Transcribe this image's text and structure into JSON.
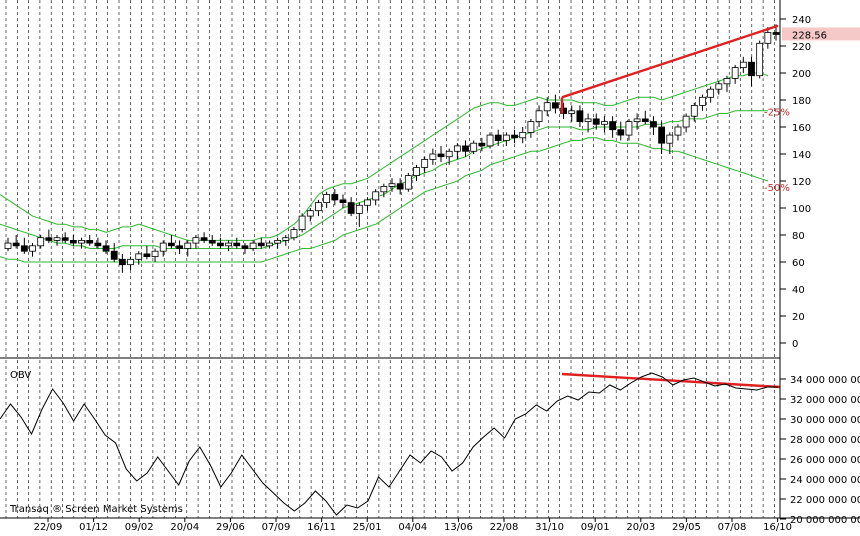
{
  "chart_data": [
    {
      "type": "candlestick",
      "ylim": [
        0,
        240
      ],
      "yticks": [
        0,
        20,
        40,
        60,
        80,
        100,
        120,
        140,
        160,
        180,
        200,
        220,
        240
      ],
      "last_price_label": "228.56",
      "envelope_labels": [
        "-25%",
        "-50%"
      ],
      "colors": {
        "envelope": "#2db82d",
        "trendline": "#e02020",
        "last_price_bg": "#f6c9c9",
        "envelope_label": "#c03030"
      },
      "candles": [
        [
          70,
          78,
          68,
          74
        ],
        [
          74,
          80,
          70,
          72
        ],
        [
          72,
          78,
          66,
          68
        ],
        [
          68,
          74,
          64,
          72
        ],
        [
          72,
          80,
          70,
          78
        ],
        [
          78,
          84,
          74,
          76
        ],
        [
          76,
          80,
          72,
          78
        ],
        [
          78,
          82,
          74,
          76
        ],
        [
          76,
          80,
          72,
          74
        ],
        [
          74,
          78,
          70,
          76
        ],
        [
          76,
          80,
          72,
          74
        ],
        [
          74,
          78,
          70,
          72
        ],
        [
          72,
          76,
          66,
          68
        ],
        [
          68,
          74,
          60,
          62
        ],
        [
          62,
          66,
          52,
          58
        ],
        [
          58,
          64,
          54,
          62
        ],
        [
          62,
          68,
          58,
          66
        ],
        [
          66,
          72,
          62,
          64
        ],
        [
          64,
          70,
          60,
          68
        ],
        [
          68,
          76,
          64,
          74
        ],
        [
          74,
          80,
          70,
          72
        ],
        [
          72,
          76,
          66,
          70
        ],
        [
          70,
          76,
          64,
          74
        ],
        [
          74,
          80,
          70,
          78
        ],
        [
          78,
          82,
          74,
          76
        ],
        [
          76,
          80,
          72,
          74
        ],
        [
          74,
          78,
          70,
          72
        ],
        [
          72,
          76,
          68,
          74
        ],
        [
          74,
          78,
          70,
          72
        ],
        [
          72,
          74,
          66,
          70
        ],
        [
          70,
          76,
          68,
          74
        ],
        [
          74,
          78,
          70,
          72
        ],
        [
          72,
          76,
          70,
          74
        ],
        [
          74,
          78,
          70,
          76
        ],
        [
          76,
          80,
          72,
          78
        ],
        [
          78,
          86,
          76,
          84
        ],
        [
          84,
          96,
          82,
          94
        ],
        [
          94,
          100,
          90,
          98
        ],
        [
          98,
          106,
          94,
          104
        ],
        [
          104,
          112,
          100,
          110
        ],
        [
          110,
          114,
          102,
          106
        ],
        [
          106,
          110,
          100,
          104
        ],
        [
          104,
          108,
          94,
          96
        ],
        [
          96,
          104,
          86,
          102
        ],
        [
          102,
          108,
          98,
          106
        ],
        [
          106,
          114,
          102,
          112
        ],
        [
          112,
          118,
          108,
          116
        ],
        [
          116,
          122,
          112,
          118
        ],
        [
          118,
          122,
          110,
          114
        ],
        [
          114,
          126,
          112,
          124
        ],
        [
          124,
          132,
          120,
          130
        ],
        [
          130,
          138,
          126,
          136
        ],
        [
          136,
          144,
          132,
          140
        ],
        [
          140,
          146,
          134,
          138
        ],
        [
          138,
          144,
          132,
          142
        ],
        [
          142,
          148,
          136,
          146
        ],
        [
          146,
          150,
          138,
          142
        ],
        [
          142,
          150,
          140,
          148
        ],
        [
          148,
          152,
          142,
          146
        ],
        [
          146,
          156,
          144,
          154
        ],
        [
          154,
          158,
          146,
          150
        ],
        [
          150,
          156,
          146,
          154
        ],
        [
          154,
          158,
          148,
          152
        ],
        [
          152,
          160,
          148,
          156
        ],
        [
          156,
          166,
          152,
          164
        ],
        [
          164,
          176,
          160,
          172
        ],
        [
          172,
          182,
          168,
          178
        ],
        [
          178,
          184,
          170,
          174
        ],
        [
          174,
          178,
          166,
          170
        ],
        [
          170,
          176,
          164,
          172
        ],
        [
          172,
          176,
          160,
          164
        ],
        [
          164,
          170,
          156,
          166
        ],
        [
          166,
          170,
          158,
          162
        ],
        [
          162,
          168,
          156,
          164
        ],
        [
          164,
          168,
          152,
          158
        ],
        [
          158,
          164,
          150,
          154
        ],
        [
          154,
          166,
          150,
          164
        ],
        [
          164,
          170,
          158,
          166
        ],
        [
          166,
          172,
          162,
          164
        ],
        [
          164,
          168,
          154,
          160
        ],
        [
          160,
          164,
          140,
          148
        ],
        [
          148,
          156,
          140,
          154
        ],
        [
          154,
          162,
          150,
          160
        ],
        [
          160,
          170,
          156,
          168
        ],
        [
          168,
          178,
          164,
          176
        ],
        [
          176,
          184,
          172,
          182
        ],
        [
          182,
          190,
          178,
          188
        ],
        [
          188,
          194,
          184,
          192
        ],
        [
          192,
          198,
          186,
          196
        ],
        [
          196,
          206,
          192,
          204
        ],
        [
          204,
          212,
          200,
          208
        ],
        [
          208,
          212,
          190,
          198
        ],
        [
          198,
          224,
          196,
          222
        ],
        [
          222,
          234,
          218,
          230
        ],
        [
          230,
          236,
          224,
          228.56
        ]
      ],
      "envelope_upper": [
        110,
        106,
        102,
        98,
        94,
        92,
        90,
        88,
        88,
        86,
        86,
        84,
        84,
        82,
        84,
        86,
        86,
        88,
        86,
        84,
        82,
        80,
        78,
        76,
        76,
        76,
        76,
        76,
        76,
        76,
        76,
        76,
        78,
        78,
        80,
        84,
        88,
        94,
        102,
        110,
        114,
        116,
        118,
        118,
        120,
        122,
        126,
        130,
        134,
        138,
        142,
        146,
        150,
        154,
        158,
        162,
        166,
        170,
        174,
        176,
        178,
        178,
        176,
        176,
        178,
        180,
        182,
        180,
        180,
        180,
        180,
        178,
        178,
        178,
        176,
        176,
        178,
        180,
        182,
        182,
        182,
        180,
        182,
        184,
        186,
        188,
        190,
        192,
        194,
        196,
        198,
        198,
        200,
        200,
        198
      ],
      "envelope_mid": [
        88,
        86,
        84,
        82,
        80,
        78,
        76,
        74,
        74,
        72,
        72,
        70,
        70,
        70,
        70,
        72,
        72,
        72,
        72,
        72,
        70,
        70,
        70,
        70,
        70,
        70,
        70,
        70,
        70,
        70,
        70,
        70,
        70,
        72,
        74,
        76,
        78,
        80,
        84,
        88,
        92,
        96,
        100,
        102,
        104,
        106,
        108,
        110,
        114,
        118,
        120,
        124,
        126,
        128,
        132,
        134,
        136,
        138,
        142,
        144,
        146,
        148,
        150,
        152,
        154,
        156,
        158,
        160,
        160,
        160,
        160,
        158,
        158,
        160,
        160,
        160,
        160,
        160,
        160,
        162,
        162,
        162,
        164,
        164,
        166,
        166,
        166,
        168,
        170,
        170,
        172,
        172,
        172,
        172,
        172
      ],
      "envelope_lower": [
        64,
        62,
        62,
        60,
        60,
        60,
        60,
        60,
        60,
        60,
        60,
        60,
        60,
        60,
        60,
        60,
        60,
        60,
        60,
        60,
        60,
        60,
        60,
        60,
        60,
        60,
        60,
        60,
        60,
        60,
        60,
        60,
        60,
        62,
        64,
        66,
        68,
        70,
        70,
        72,
        74,
        76,
        80,
        82,
        84,
        86,
        88,
        92,
        96,
        100,
        104,
        108,
        112,
        114,
        116,
        118,
        120,
        124,
        126,
        128,
        132,
        134,
        136,
        138,
        140,
        142,
        142,
        144,
        146,
        148,
        150,
        150,
        152,
        152,
        150,
        150,
        148,
        148,
        148,
        146,
        144,
        144,
        142,
        142,
        140,
        138,
        136,
        134,
        132,
        130,
        128,
        126,
        124,
        122,
        120
      ]
    },
    {
      "type": "line",
      "series": [
        {
          "name": "OBV",
          "values": [
            30,
            31.5,
            30.2,
            28.5,
            31,
            33,
            31.6,
            29.8,
            31.5,
            30,
            28.4,
            27.6,
            25,
            23.8,
            24.6,
            26.2,
            24.8,
            23.4,
            25.8,
            27.2,
            25.4,
            23.2,
            24.6,
            26.4,
            25,
            23.6,
            22.6,
            21.6,
            20.8,
            21.6,
            22.8,
            21.8,
            20.4,
            21.4,
            21.1,
            21.8,
            24.2,
            23.2,
            24.8,
            26.4,
            25.6,
            26.8,
            26.2,
            24.8,
            25.6,
            27.2,
            28.2,
            29.1,
            28.1,
            30,
            30.5,
            31.4,
            30.8,
            31.8,
            32.3,
            31.9,
            32.7,
            32.6,
            33.4,
            32.9,
            33.6,
            34.2,
            34.6,
            34.2,
            33.4,
            33.9,
            34.1,
            33.7,
            33.3,
            33.5,
            33.1,
            33,
            32.9,
            33.2,
            33.2
          ]
        }
      ],
      "title": "OBV",
      "ylim": [
        20.3,
        35.3
      ],
      "ytick_labels": [
        "20 000 000 000",
        "22 000 000 000",
        "24 000 000 000",
        "26 000 000 000",
        "28 000 000 000",
        "30 000 000 000",
        "32 000 000 000",
        "34 000 000 000"
      ],
      "ytick_values": [
        20,
        22,
        24,
        26,
        28,
        30,
        32,
        34
      ]
    }
  ],
  "x_axis": {
    "labels": [
      "22/09",
      "01/12",
      "09/02",
      "20/04",
      "29/06",
      "07/09",
      "16/11",
      "25/01",
      "04/04",
      "13/06",
      "22/08",
      "31/10",
      "09/01",
      "20/03",
      "29/05",
      "07/08",
      "16/10"
    ]
  },
  "footer": {
    "credit": "Transaq ® Screen Market Systems"
  }
}
